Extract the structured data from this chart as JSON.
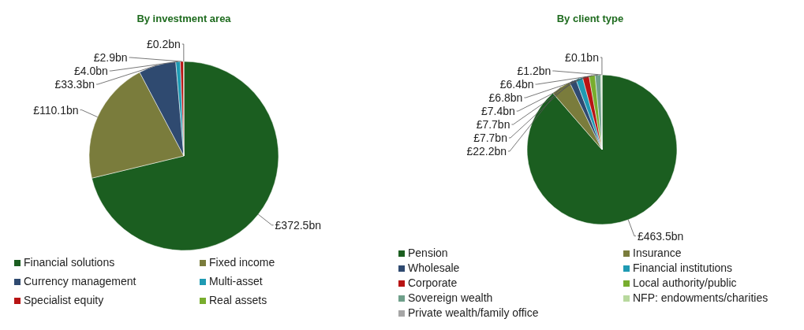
{
  "chart_data": [
    {
      "type": "pie",
      "title": "By investment area",
      "categories": [
        "Financial solutions",
        "Fixed income",
        "Currency management",
        "Multi-asset",
        "Specialist equity",
        "Real assets"
      ],
      "values": [
        372.5,
        110.1,
        33.3,
        4.0,
        2.9,
        0.2
      ],
      "value_labels": [
        "£372.5bn",
        "£110.1bn",
        "£33.3bn",
        "£4.0bn",
        "£2.9bn",
        "£0.2bn"
      ],
      "colors": [
        "#1b5e20",
        "#7a7c3c",
        "#2f4a70",
        "#1f9ab3",
        "#b81414",
        "#78ad2e"
      ],
      "legend": "bottom"
    },
    {
      "type": "pie",
      "title": "By client type",
      "categories": [
        "Pension",
        "Insurance",
        "Wholesale",
        "Financial institutions",
        "Corporate",
        "Local authority/public",
        "Sovereign wealth",
        "NFP: endowments/charities",
        "Private wealth/family office"
      ],
      "values": [
        463.5,
        22.2,
        7.7,
        7.7,
        7.4,
        6.8,
        6.4,
        1.2,
        0.1
      ],
      "value_labels": [
        "£463.5bn",
        "£22.2bn",
        "£7.7bn",
        "£7.7bn",
        "£7.4bn",
        "£6.8bn",
        "£6.4bn",
        "£1.2bn",
        "£0.1bn"
      ],
      "colors": [
        "#1b5e20",
        "#7a7c3c",
        "#2f4a70",
        "#1f9ab3",
        "#b81414",
        "#78ad2e",
        "#6f9f8a",
        "#b8d99e",
        "#a6a6a6"
      ],
      "legend": "bottom"
    }
  ]
}
